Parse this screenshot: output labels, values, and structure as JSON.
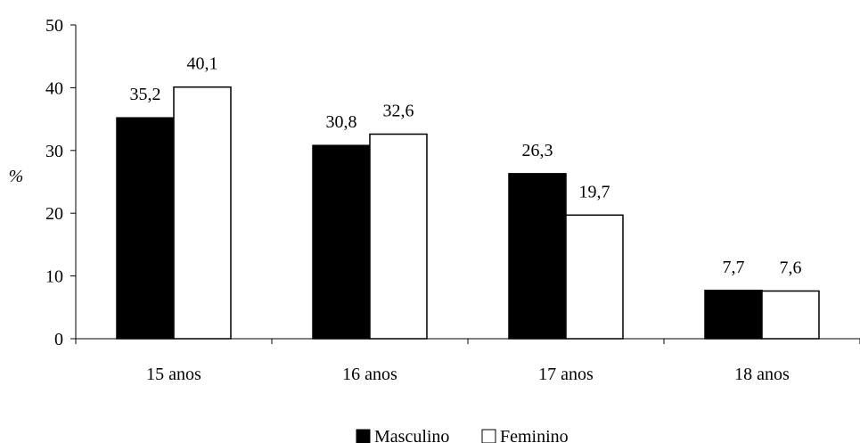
{
  "chart_data": {
    "type": "bar",
    "title": "",
    "xlabel": "",
    "ylabel": "%",
    "ylim": [
      0,
      50
    ],
    "yticks": [
      "0",
      "10",
      "20",
      "30",
      "40",
      "50"
    ],
    "grid": false,
    "legend_position": "bottom",
    "categories": [
      "15 anos",
      "16 anos",
      "17 anos",
      "18 anos"
    ],
    "series": [
      {
        "name": "Masculino",
        "color": "#000000",
        "values": [
          35.2,
          30.8,
          26.3,
          7.7
        ],
        "labels": [
          "35,2",
          "30,8",
          "26,3",
          "7,7"
        ]
      },
      {
        "name": "Feminino",
        "color": "#ffffff",
        "values": [
          40.1,
          32.6,
          19.7,
          7.6
        ],
        "labels": [
          "40,1",
          "32,6",
          "19,7",
          "7,6"
        ]
      }
    ]
  }
}
